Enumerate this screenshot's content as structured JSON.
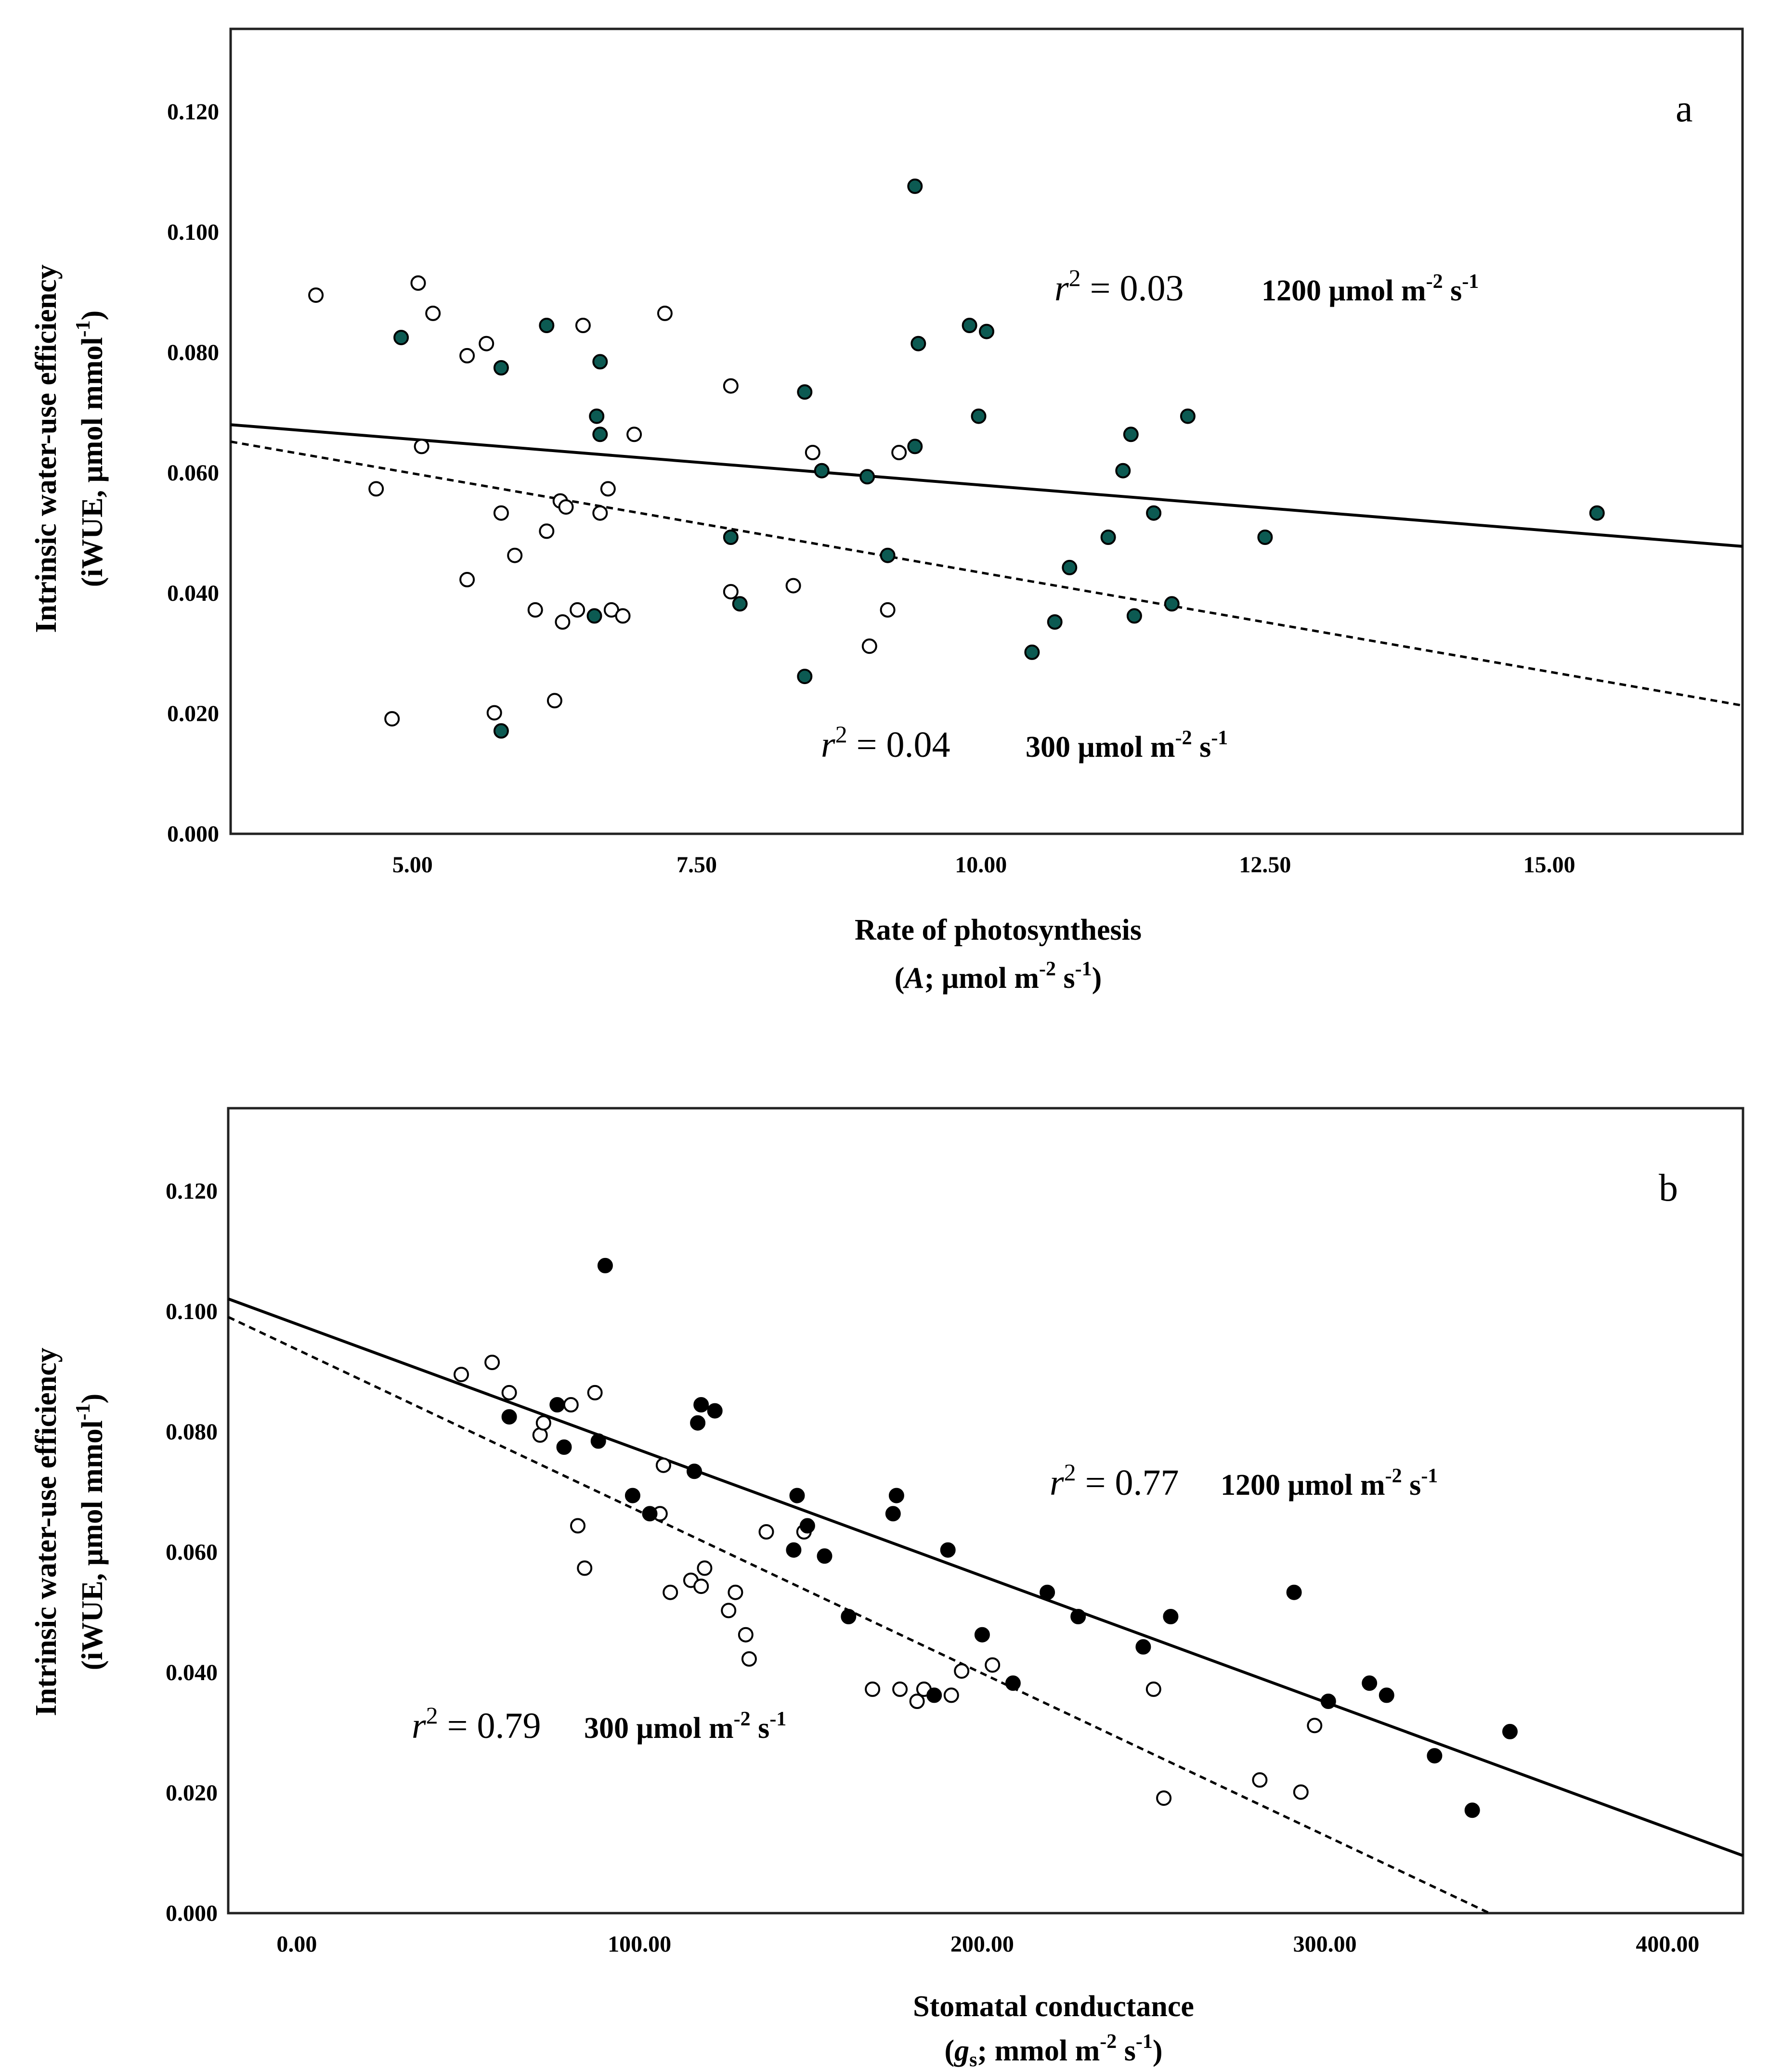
{
  "colors": {
    "filled_a": "#0c5a52",
    "filled_b": "#000000",
    "open": "#ffffff",
    "stroke": "#000000"
  },
  "chart_data": [
    {
      "id": "a",
      "type": "scatter",
      "panel_label": "a",
      "xlabel_line1": "Rate of photosynthesis",
      "xlabel_line2_prefix": "(",
      "xlabel_line2_symbol": "A",
      "xlabel_line2_rest": "; μmol m",
      "xlabel_line2_exp1": "-2",
      "xlabel_line2_mid": " s",
      "xlabel_line2_exp2": "-1",
      "xlabel_line2_end": ")",
      "ylabel_line1": "Intrinsic water-use efficiency",
      "ylabel_line2": "(iWUE, μmol mmol",
      "ylabel_line2_exp": "-1",
      "ylabel_line2_end": ")",
      "xlim": [
        3.4,
        16.7
      ],
      "ylim": [
        0,
        0.133
      ],
      "xticks": [
        5,
        7.5,
        10,
        12.5,
        15
      ],
      "xtick_labels": [
        "5.00",
        "7.50",
        "10.00",
        "12.50",
        "15.00"
      ],
      "yticks": [
        0,
        0.02,
        0.04,
        0.06,
        0.08,
        0.1,
        0.12
      ],
      "ytick_labels": [
        "0.000",
        "0.020",
        "0.040",
        "0.060",
        "0.080",
        "0.100",
        "0.120"
      ],
      "series": [
        {
          "name": "1200 μmol m-2 s-1",
          "marker": "filled",
          "points": [
            [
              4.9,
              0.082
            ],
            [
              5.78,
              0.077
            ],
            [
              6.18,
              0.084
            ],
            [
              6.65,
              0.078
            ],
            [
              6.62,
              0.069
            ],
            [
              6.65,
              0.066
            ],
            [
              6.6,
              0.036
            ],
            [
              5.78,
              0.017
            ],
            [
              7.8,
              0.049
            ],
            [
              7.88,
              0.038
            ],
            [
              8.45,
              0.073
            ],
            [
              8.6,
              0.06
            ],
            [
              8.45,
              0.026
            ],
            [
              9.0,
              0.059
            ],
            [
              9.18,
              0.046
            ],
            [
              9.42,
              0.107
            ],
            [
              9.45,
              0.081
            ],
            [
              9.42,
              0.064
            ],
            [
              9.9,
              0.084
            ],
            [
              10.05,
              0.083
            ],
            [
              9.98,
              0.069
            ],
            [
              10.45,
              0.03
            ],
            [
              10.65,
              0.035
            ],
            [
              10.78,
              0.044
            ],
            [
              11.12,
              0.049
            ],
            [
              11.25,
              0.06
            ],
            [
              11.32,
              0.066
            ],
            [
              11.35,
              0.036
            ],
            [
              11.52,
              0.053
            ],
            [
              11.68,
              0.038
            ],
            [
              11.82,
              0.069
            ],
            [
              12.5,
              0.049
            ],
            [
              15.42,
              0.053
            ]
          ],
          "fit": [
            [
              3.4,
              0.0676
            ],
            [
              16.7,
              0.0475
            ]
          ],
          "fit_style": "solid",
          "r2_label": "r",
          "r2_exp": "2",
          "r2_value": " = 0.03",
          "light_label": "1200 μmol m",
          "light_exp1": "-2",
          "light_mid": " s",
          "light_exp2": "-1"
        },
        {
          "name": "300 μmol m-2 s-1",
          "marker": "open",
          "points": [
            [
              4.15,
              0.089
            ],
            [
              4.68,
              0.057
            ],
            [
              4.82,
              0.019
            ],
            [
              5.05,
              0.091
            ],
            [
              5.08,
              0.064
            ],
            [
              5.18,
              0.086
            ],
            [
              5.48,
              0.079
            ],
            [
              5.48,
              0.042
            ],
            [
              5.65,
              0.081
            ],
            [
              5.72,
              0.02
            ],
            [
              5.78,
              0.053
            ],
            [
              5.9,
              0.046
            ],
            [
              6.08,
              0.037
            ],
            [
              6.18,
              0.05
            ],
            [
              6.25,
              0.022
            ],
            [
              6.3,
              0.055
            ],
            [
              6.32,
              0.035
            ],
            [
              6.35,
              0.054
            ],
            [
              6.45,
              0.037
            ],
            [
              6.5,
              0.084
            ],
            [
              6.65,
              0.053
            ],
            [
              6.72,
              0.057
            ],
            [
              6.75,
              0.037
            ],
            [
              6.85,
              0.036
            ],
            [
              6.95,
              0.066
            ],
            [
              7.22,
              0.086
            ],
            [
              7.8,
              0.074
            ],
            [
              7.8,
              0.04
            ],
            [
              8.35,
              0.041
            ],
            [
              8.52,
              0.063
            ],
            [
              9.02,
              0.031
            ],
            [
              9.18,
              0.037
            ],
            [
              9.28,
              0.063
            ]
          ],
          "fit": [
            [
              3.4,
              0.0648
            ],
            [
              16.7,
              0.0212
            ]
          ],
          "fit_style": "dashed",
          "r2_label": "r",
          "r2_exp": "2",
          "r2_value": " = 0.04",
          "light_label": "300 μmol m",
          "light_exp1": "-2",
          "light_mid": " s",
          "light_exp2": "-1"
        }
      ]
    },
    {
      "id": "b",
      "type": "scatter",
      "panel_label": "b",
      "xlabel_line1": "Stomatal conductance",
      "xlabel_line2_prefix": "(",
      "xlabel_line2_symbol": "g",
      "xlabel_line2_sub": "s",
      "xlabel_line2_rest": "; mmol m",
      "xlabel_line2_exp1": "-2",
      "xlabel_line2_mid": " s",
      "xlabel_line2_exp2": "-1",
      "xlabel_line2_end": ")",
      "ylabel_line1": "Intrinsic water-use efficiency",
      "ylabel_line2": "(iWUE, μmol mmol",
      "ylabel_line2_exp": "-1",
      "ylabel_line2_end": ")",
      "xlim": [
        -20,
        422
      ],
      "ylim": [
        0,
        0.133
      ],
      "xticks": [
        0,
        100,
        200,
        300,
        400
      ],
      "xtick_labels": [
        "0.00",
        "100.00",
        "200.00",
        "300.00",
        "400.00"
      ],
      "yticks": [
        0,
        0.02,
        0.04,
        0.06,
        0.08,
        0.1,
        0.12
      ],
      "ytick_labels": [
        "0.000",
        "0.020",
        "0.040",
        "0.060",
        "0.080",
        "0.100",
        "0.120"
      ],
      "series": [
        {
          "name": "1200 μmol m-2 s-1",
          "marker": "filled",
          "points": [
            [
              62,
              0.082
            ],
            [
              76,
              0.084
            ],
            [
              78,
              0.077
            ],
            [
              88,
              0.078
            ],
            [
              90,
              0.107
            ],
            [
              98,
              0.069
            ],
            [
              103,
              0.066
            ],
            [
              116,
              0.073
            ],
            [
              117,
              0.081
            ],
            [
              118,
              0.084
            ],
            [
              122,
              0.083
            ],
            [
              145,
              0.06
            ],
            [
              146,
              0.069
            ],
            [
              149,
              0.064
            ],
            [
              154,
              0.059
            ],
            [
              161,
              0.049
            ],
            [
              174,
              0.066
            ],
            [
              175,
              0.069
            ],
            [
              186,
              0.036
            ],
            [
              190,
              0.06
            ],
            [
              200,
              0.046
            ],
            [
              209,
              0.038
            ],
            [
              219,
              0.053
            ],
            [
              228,
              0.049
            ],
            [
              247,
              0.044
            ],
            [
              255,
              0.049
            ],
            [
              291,
              0.053
            ],
            [
              301,
              0.035
            ],
            [
              313,
              0.038
            ],
            [
              318,
              0.036
            ],
            [
              332,
              0.026
            ],
            [
              343,
              0.017
            ],
            [
              354,
              0.03
            ]
          ],
          "fit": [
            [
              -20,
              0.1015
            ],
            [
              422,
              0.0095
            ]
          ],
          "fit_style": "solid",
          "r2_label": "r",
          "r2_exp": "2",
          "r2_value": " = 0.77",
          "light_label": "1200 μmol m",
          "light_exp1": "-2",
          "light_mid": " s",
          "light_exp2": "-1"
        },
        {
          "name": "300 μmol m-2 s-1",
          "marker": "open",
          "points": [
            [
              48,
              0.089
            ],
            [
              57,
              0.091
            ],
            [
              62,
              0.086
            ],
            [
              71,
              0.079
            ],
            [
              72,
              0.081
            ],
            [
              80,
              0.084
            ],
            [
              82,
              0.064
            ],
            [
              84,
              0.057
            ],
            [
              87,
              0.086
            ],
            [
              106,
              0.066
            ],
            [
              107,
              0.074
            ],
            [
              109,
              0.053
            ],
            [
              115,
              0.055
            ],
            [
              118,
              0.054
            ],
            [
              119,
              0.057
            ],
            [
              126,
              0.05
            ],
            [
              128,
              0.053
            ],
            [
              131,
              0.046
            ],
            [
              132,
              0.042
            ],
            [
              137,
              0.063
            ],
            [
              148,
              0.063
            ],
            [
              168,
              0.037
            ],
            [
              176,
              0.037
            ],
            [
              181,
              0.035
            ],
            [
              183,
              0.037
            ],
            [
              191,
              0.036
            ],
            [
              194,
              0.04
            ],
            [
              203,
              0.041
            ],
            [
              250,
              0.037
            ],
            [
              253,
              0.019
            ],
            [
              281,
              0.022
            ],
            [
              293,
              0.02
            ],
            [
              297,
              0.031
            ]
          ],
          "fit": [
            [
              -20,
              0.0985
            ],
            [
              348,
              0
            ]
          ],
          "fit_style": "dashed",
          "r2_label": "r",
          "r2_exp": "2",
          "r2_value": " = 0.79",
          "light_label": "300 μmol m",
          "light_exp1": "-2",
          "light_mid": " s",
          "light_exp2": "-1"
        }
      ]
    }
  ]
}
